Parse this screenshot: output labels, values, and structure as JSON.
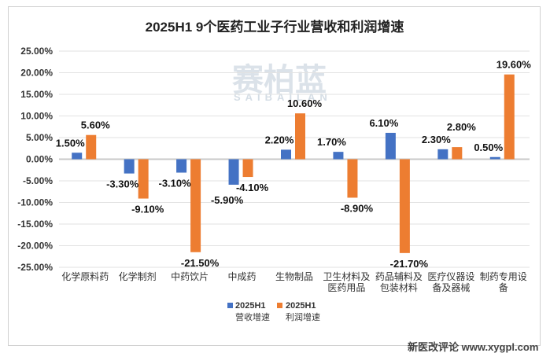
{
  "chart_data": {
    "type": "bar",
    "title": "2025H1 9个医药工业子行业营收和利润增速",
    "categories": [
      "化学原料药",
      "化学制剂",
      "中药饮片",
      "中成药",
      "生物制品",
      "卫生材料及医药用品",
      "药品辅料及包装材料",
      "医疗仪器设备及器械",
      "制药专用设备"
    ],
    "series": [
      {
        "name": "2025H1 营收增速",
        "name_line1": "2025H1",
        "name_line2": "营收增速",
        "color": "#4472c4",
        "values": [
          1.5,
          -3.3,
          -3.1,
          -5.9,
          2.2,
          1.7,
          6.1,
          2.3,
          0.5
        ],
        "labels": [
          "1.50%",
          "-3.30%",
          "-3.10%",
          "-5.90%",
          "2.20%",
          "1.70%",
          "6.10%",
          "2.30%",
          "0.50%"
        ]
      },
      {
        "name": "2025H1 利润增速",
        "name_line1": "2025H1",
        "name_line2": "利润增速",
        "color": "#ed7d31",
        "values": [
          5.6,
          -9.1,
          -21.5,
          -4.1,
          10.6,
          -8.9,
          -21.7,
          2.8,
          19.6
        ],
        "labels": [
          "5.60%",
          "-9.10%",
          "-21.50%",
          "-4.10%",
          "10.60%",
          "-8.90%",
          "-21.70%",
          "2.80%",
          "19.60%"
        ]
      }
    ],
    "ylim": [
      -25,
      25
    ],
    "yticks": [
      25,
      20,
      15,
      10,
      5,
      0,
      -5,
      -10,
      -15,
      -20,
      -25
    ],
    "ytick_labels": [
      "25.00%",
      "20.00%",
      "15.00%",
      "10.00%",
      "5.00%",
      "0.00%",
      "-5.00%",
      "-10.00%",
      "-15.00%",
      "-20.00%",
      "-25.00%"
    ],
    "grid": true,
    "legend": "bottom"
  },
  "watermark": {
    "text": "赛柏蓝",
    "sub": "SAIBAILAN"
  },
  "footer": "新医改评论 www.xygpl.com"
}
